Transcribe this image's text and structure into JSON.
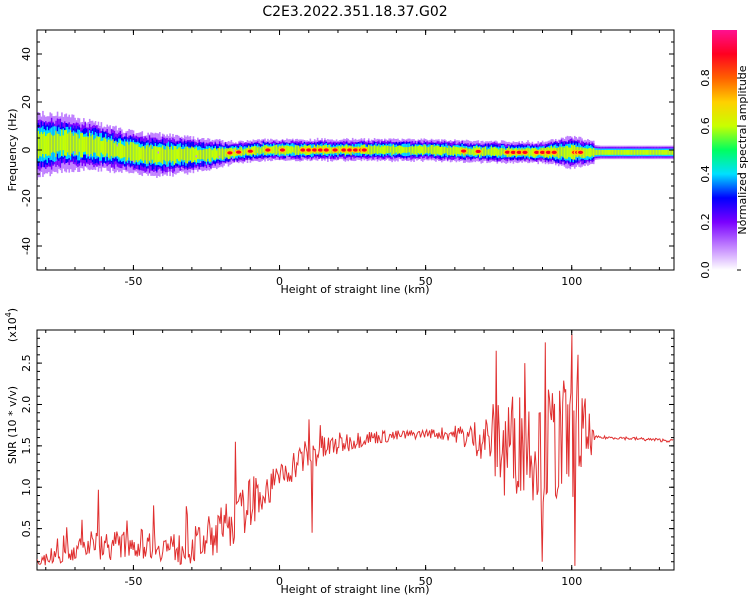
{
  "title": "C2E3.2022.351.18.37.G02",
  "chart_data": [
    {
      "type": "heatmap",
      "xlabel": "Height of straight line (km)",
      "ylabel": "Frequency (Hz)",
      "xlim": [
        -83,
        135
      ],
      "ylim": [
        -50,
        50
      ],
      "x_ticks": [
        -50,
        0,
        50,
        100
      ],
      "x_tick_labels": [
        "-50",
        "0",
        "50",
        "100"
      ],
      "y_ticks": [
        -40,
        -20,
        0,
        20,
        40
      ],
      "y_tick_labels": [
        "-40",
        "-20",
        "0",
        "20",
        "40"
      ],
      "colorbar": {
        "label": "Normalized spectral amplitude",
        "range": [
          0,
          1
        ],
        "ticks": [
          0.0,
          0.2,
          0.4,
          0.6,
          0.8
        ],
        "tick_labels": [
          "0.0",
          "0.2",
          "0.4",
          "0.6",
          "0.8"
        ],
        "colors": [
          "#ffffff",
          "#c080ff",
          "#7a00ff",
          "#0000ff",
          "#00e0ff",
          "#00ff60",
          "#c8ff00",
          "#ffd000",
          "#ff6000",
          "#ff0020",
          "#ff1090"
        ]
      },
      "band": {
        "center_hz": [
          [
            -83,
            2
          ],
          [
            -75,
            3
          ],
          [
            -65,
            2
          ],
          [
            -55,
            0
          ],
          [
            -45,
            -2
          ],
          [
            -35,
            -2
          ],
          [
            -25,
            -2
          ],
          [
            -15,
            -1
          ],
          [
            -5,
            0
          ],
          [
            0,
            0
          ],
          [
            20,
            0
          ],
          [
            50,
            0
          ],
          [
            80,
            -1
          ],
          [
            100,
            -1
          ],
          [
            110,
            -1
          ],
          [
            135,
            -1
          ]
        ],
        "half_width_hz": [
          [
            -83,
            6
          ],
          [
            -70,
            5
          ],
          [
            -55,
            4
          ],
          [
            -40,
            4
          ],
          [
            -25,
            3
          ],
          [
            -15,
            2
          ],
          [
            0,
            2
          ],
          [
            50,
            2
          ],
          [
            90,
            2
          ],
          [
            100,
            3
          ],
          [
            110,
            2
          ],
          [
            135,
            2
          ]
        ]
      },
      "hot_spots_km": [
        -17,
        -14,
        -10,
        -4,
        1,
        8,
        10,
        12,
        14,
        16,
        19,
        22,
        24,
        26,
        28,
        29,
        63,
        68,
        78,
        80,
        82,
        84,
        88,
        90,
        92,
        94,
        101,
        102,
        103
      ]
    },
    {
      "type": "line",
      "xlabel": "Height of straight line (km)",
      "ylabel": "SNR (10 * v/v)",
      "y_multiplier": "(x10",
      "y_multiplier_exp": "4",
      "y_multiplier_close": ")",
      "xlim": [
        -83,
        135
      ],
      "ylim": [
        0,
        2.9
      ],
      "x_ticks": [
        -50,
        0,
        50,
        100
      ],
      "x_tick_labels": [
        "-50",
        "0",
        "50",
        "100"
      ],
      "y_ticks": [
        0.5,
        1.0,
        1.5,
        2.0,
        2.5
      ],
      "y_tick_labels": [
        "0.5",
        "1.0",
        "1.5",
        "2.0",
        "2.5"
      ],
      "color": "#e03030",
      "baseline": [
        [
          -83,
          0.08
        ],
        [
          -75,
          0.18
        ],
        [
          -65,
          0.3
        ],
        [
          -55,
          0.3
        ],
        [
          -45,
          0.32
        ],
        [
          -35,
          0.25
        ],
        [
          -28,
          0.3
        ],
        [
          -22,
          0.45
        ],
        [
          -15,
          0.6
        ],
        [
          -10,
          0.82
        ],
        [
          -5,
          0.95
        ],
        [
          0,
          1.1
        ],
        [
          5,
          1.28
        ],
        [
          10,
          1.4
        ],
        [
          15,
          1.45
        ],
        [
          20,
          1.52
        ],
        [
          30,
          1.6
        ],
        [
          40,
          1.62
        ],
        [
          50,
          1.65
        ],
        [
          60,
          1.65
        ],
        [
          65,
          1.6
        ],
        [
          70,
          1.6
        ],
        [
          80,
          1.55
        ],
        [
          90,
          1.5
        ],
        [
          100,
          1.55
        ],
        [
          108,
          1.6
        ],
        [
          115,
          1.6
        ],
        [
          125,
          1.58
        ],
        [
          135,
          1.56
        ]
      ],
      "noise": [
        [
          -83,
          0.06
        ],
        [
          -60,
          0.18
        ],
        [
          -40,
          0.18
        ],
        [
          -20,
          0.28
        ],
        [
          -10,
          0.3
        ],
        [
          0,
          0.18
        ],
        [
          10,
          0.22
        ],
        [
          20,
          0.14
        ],
        [
          30,
          0.09
        ],
        [
          50,
          0.05
        ],
        [
          60,
          0.1
        ],
        [
          70,
          0.28
        ],
        [
          75,
          0.6
        ],
        [
          85,
          0.65
        ],
        [
          95,
          0.8
        ],
        [
          103,
          0.75
        ],
        [
          108,
          0.02
        ],
        [
          135,
          0.02
        ]
      ],
      "spikes": [
        [
          -62,
          0.97
        ],
        [
          -43,
          0.78
        ],
        [
          -15,
          1.55
        ],
        [
          10,
          1.82
        ],
        [
          11,
          0.45
        ],
        [
          14,
          1.75
        ],
        [
          74,
          2.65
        ],
        [
          77,
          0.9
        ],
        [
          84,
          2.5
        ],
        [
          90,
          0.1
        ],
        [
          91,
          2.75
        ],
        [
          100,
          2.85
        ],
        [
          101,
          0.05
        ],
        [
          102,
          2.6
        ]
      ]
    }
  ]
}
